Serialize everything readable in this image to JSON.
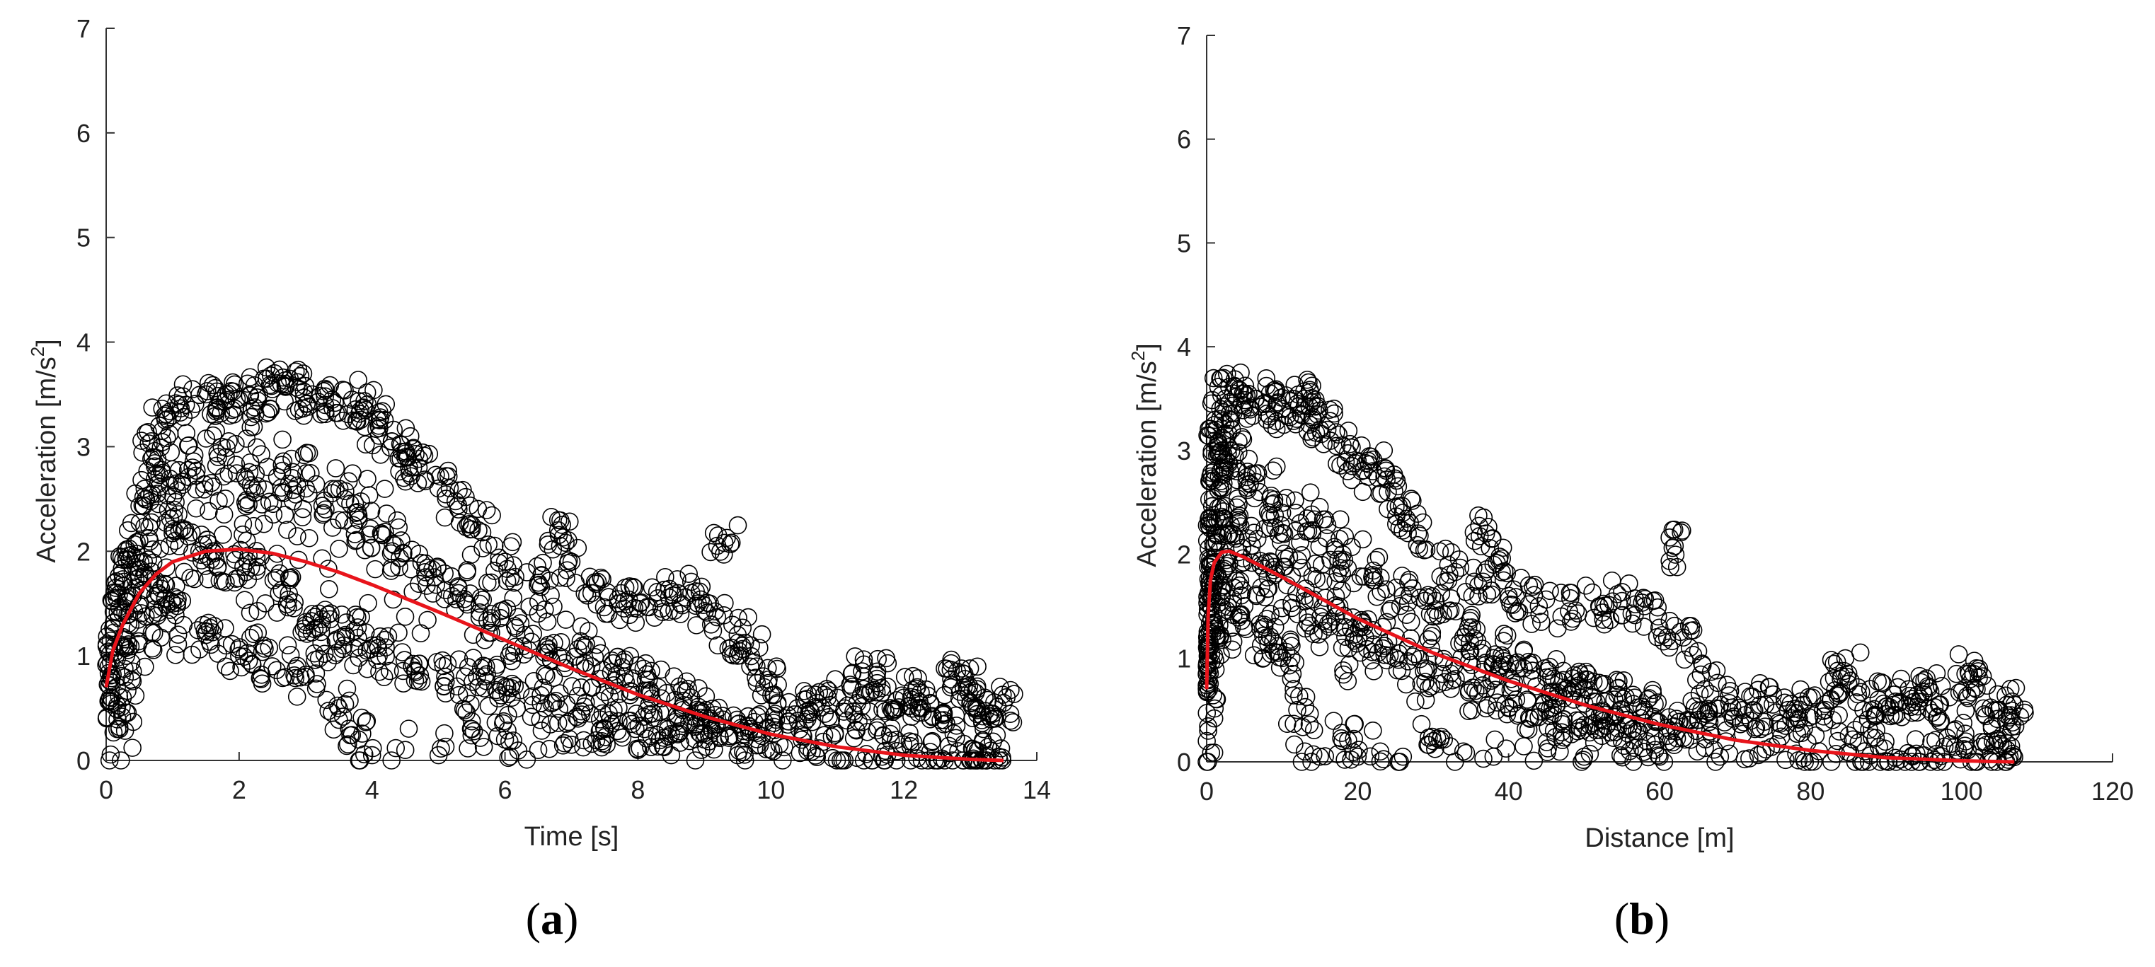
{
  "chart_data": [
    {
      "type": "scatter",
      "panel_label": "a",
      "xlabel": "Time [s]",
      "ylabel": "Acceleration [m/s",
      "ylabel_sup": "2",
      "ylabel_close": "]",
      "xlim": [
        0,
        14
      ],
      "ylim": [
        0,
        7
      ],
      "xticks": [
        "0",
        "2",
        "4",
        "6",
        "8",
        "10",
        "12",
        "14"
      ],
      "yticks": [
        "0",
        "1",
        "2",
        "3",
        "4",
        "5",
        "6",
        "7"
      ],
      "marker_color": "#000000",
      "fit_color": "#e8141b",
      "scatter_points": [
        [
          0.05,
          0.0
        ],
        [
          0.2,
          0.3
        ],
        [
          0.25,
          0.6
        ],
        [
          0.3,
          1.0
        ],
        [
          0.35,
          1.4
        ],
        [
          0.4,
          1.8
        ],
        [
          0.5,
          2.1
        ],
        [
          0.6,
          2.5
        ],
        [
          0.7,
          2.9
        ],
        [
          0.8,
          3.2
        ],
        [
          1.0,
          3.3
        ],
        [
          1.2,
          3.4
        ],
        [
          1.5,
          3.5
        ],
        [
          1.8,
          3.5
        ],
        [
          2.0,
          3.45
        ],
        [
          2.3,
          3.5
        ],
        [
          2.5,
          3.55
        ],
        [
          2.7,
          3.6
        ],
        [
          2.9,
          3.55
        ],
        [
          3.1,
          3.5
        ],
        [
          3.4,
          3.45
        ],
        [
          3.7,
          3.45
        ],
        [
          3.9,
          3.35
        ],
        [
          4.1,
          3.2
        ],
        [
          4.3,
          3.05
        ],
        [
          4.5,
          2.9
        ],
        [
          4.7,
          2.8
        ],
        [
          5.0,
          2.6
        ],
        [
          5.3,
          2.4
        ],
        [
          5.6,
          2.2
        ],
        [
          6.0,
          1.9
        ],
        [
          6.5,
          1.7
        ],
        [
          6.8,
          2.2
        ],
        [
          7.0,
          1.9
        ],
        [
          7.3,
          1.6
        ],
        [
          7.7,
          1.5
        ],
        [
          8.0,
          1.45
        ],
        [
          8.3,
          1.55
        ],
        [
          8.6,
          1.6
        ],
        [
          8.9,
          1.5
        ],
        [
          9.1,
          1.3
        ],
        [
          9.3,
          2.08
        ],
        [
          9.5,
          1.2
        ],
        [
          9.7,
          1.1
        ],
        [
          9.9,
          0.7
        ],
        [
          10.1,
          0.55
        ],
        [
          10.4,
          0.5
        ],
        [
          10.7,
          0.55
        ],
        [
          11.0,
          0.6
        ],
        [
          11.3,
          0.55
        ],
        [
          11.4,
          0.8
        ],
        [
          11.6,
          0.85
        ],
        [
          11.8,
          0.5
        ],
        [
          12.0,
          0.6
        ],
        [
          12.2,
          0.7
        ],
        [
          12.4,
          0.55
        ],
        [
          12.6,
          0.45
        ],
        [
          12.8,
          0.85
        ],
        [
          12.9,
          0.7
        ],
        [
          13.0,
          0.55
        ],
        [
          13.2,
          0.3
        ],
        [
          13.3,
          0.45
        ],
        [
          13.5,
          0.55
        ],
        [
          1.0,
          1.5
        ],
        [
          1.5,
          1.2
        ],
        [
          2.0,
          1.0
        ],
        [
          2.5,
          0.9
        ],
        [
          3.0,
          0.8
        ],
        [
          3.5,
          0.5
        ],
        [
          3.8,
          0.2
        ],
        [
          4.0,
          0.05
        ],
        [
          4.5,
          0.1
        ],
        [
          5.0,
          0.05
        ],
        [
          5.5,
          0.3
        ],
        [
          6.0,
          0.2
        ],
        [
          6.5,
          0.1
        ],
        [
          7.0,
          0.15
        ],
        [
          7.5,
          0.3
        ],
        [
          8.0,
          0.1
        ],
        [
          8.5,
          0.05
        ],
        [
          9.0,
          0.2
        ],
        [
          9.5,
          0.05
        ],
        [
          10.0,
          0.1
        ],
        [
          1.3,
          2.8
        ],
        [
          1.8,
          2.9
        ],
        [
          2.2,
          2.6
        ],
        [
          2.8,
          2.7
        ],
        [
          3.3,
          2.4
        ],
        [
          3.8,
          2.3
        ],
        [
          4.3,
          2.0
        ],
        [
          4.8,
          1.8
        ],
        [
          5.3,
          1.6
        ],
        [
          5.8,
          1.4
        ],
        [
          6.3,
          1.2
        ],
        [
          6.8,
          1.0
        ],
        [
          7.3,
          0.9
        ],
        [
          7.8,
          0.8
        ],
        [
          8.3,
          0.7
        ],
        [
          8.8,
          0.6
        ],
        [
          1.1,
          2.2
        ],
        [
          1.6,
          2.0
        ],
        [
          2.1,
          1.8
        ],
        [
          2.6,
          1.6
        ],
        [
          3.1,
          1.4
        ],
        [
          3.6,
          1.2
        ],
        [
          4.1,
          1.0
        ],
        [
          4.6,
          0.9
        ],
        [
          5.1,
          0.8
        ],
        [
          5.6,
          0.7
        ],
        [
          6.1,
          0.6
        ],
        [
          6.6,
          0.5
        ],
        [
          7.1,
          0.4
        ],
        [
          7.6,
          0.35
        ],
        [
          8.1,
          0.3
        ],
        [
          8.6,
          0.25
        ],
        [
          9.1,
          0.3
        ],
        [
          9.6,
          0.25
        ]
      ],
      "fit_curve": [
        [
          0.0,
          0.7
        ],
        [
          0.1,
          1.05
        ],
        [
          0.25,
          1.3
        ],
        [
          0.5,
          1.6
        ],
        [
          0.75,
          1.78
        ],
        [
          1.0,
          1.9
        ],
        [
          1.5,
          2.0
        ],
        [
          2.0,
          2.02
        ],
        [
          2.5,
          1.98
        ],
        [
          3.0,
          1.9
        ],
        [
          3.5,
          1.8
        ],
        [
          4.0,
          1.68
        ],
        [
          5.0,
          1.42
        ],
        [
          6.0,
          1.15
        ],
        [
          7.0,
          0.88
        ],
        [
          8.0,
          0.63
        ],
        [
          9.0,
          0.42
        ],
        [
          10.0,
          0.25
        ],
        [
          11.0,
          0.13
        ],
        [
          12.0,
          0.05
        ],
        [
          13.0,
          0.01
        ],
        [
          13.5,
          0.0
        ]
      ]
    },
    {
      "type": "scatter",
      "panel_label": "b",
      "xlabel": "Distance [m]",
      "ylabel": "Acceleration [m/s",
      "ylabel_sup": "2",
      "ylabel_close": "]",
      "xlim": [
        0,
        120
      ],
      "ylim": [
        0,
        7
      ],
      "xticks": [
        "0",
        "20",
        "40",
        "60",
        "80",
        "100",
        "120"
      ],
      "yticks": [
        "0",
        "1",
        "2",
        "3",
        "4",
        "5",
        "6",
        "7"
      ],
      "marker_color": "#000000",
      "fit_color": "#e8141b",
      "scatter_points": [
        [
          0.0,
          0.0
        ],
        [
          0.2,
          0.3
        ],
        [
          0.3,
          0.7
        ],
        [
          0.4,
          1.1
        ],
        [
          0.5,
          1.5
        ],
        [
          0.6,
          1.9
        ],
        [
          0.8,
          2.3
        ],
        [
          1.0,
          2.8
        ],
        [
          1.3,
          3.2
        ],
        [
          1.8,
          3.4
        ],
        [
          2.5,
          3.5
        ],
        [
          3.5,
          3.55
        ],
        [
          5.0,
          3.55
        ],
        [
          6.5,
          3.5
        ],
        [
          8.0,
          3.45
        ],
        [
          10.0,
          3.4
        ],
        [
          12.0,
          3.45
        ],
        [
          13.0,
          3.5
        ],
        [
          14.0,
          3.3
        ],
        [
          16.0,
          3.2
        ],
        [
          18.0,
          3.05
        ],
        [
          20.0,
          2.9
        ],
        [
          22.0,
          2.8
        ],
        [
          24.0,
          2.6
        ],
        [
          26.0,
          2.4
        ],
        [
          28.0,
          2.2
        ],
        [
          32.0,
          1.9
        ],
        [
          36.0,
          1.7
        ],
        [
          37.0,
          2.2
        ],
        [
          38.0,
          1.9
        ],
        [
          40.0,
          1.6
        ],
        [
          44.0,
          1.5
        ],
        [
          48.0,
          1.45
        ],
        [
          52.0,
          1.5
        ],
        [
          55.0,
          1.55
        ],
        [
          58.0,
          1.5
        ],
        [
          61.0,
          1.2
        ],
        [
          62.0,
          2.08
        ],
        [
          64.0,
          1.1
        ],
        [
          66.0,
          0.7
        ],
        [
          68.0,
          0.55
        ],
        [
          71.0,
          0.5
        ],
        [
          74.0,
          0.55
        ],
        [
          77.0,
          0.5
        ],
        [
          79.0,
          0.55
        ],
        [
          82.0,
          0.5
        ],
        [
          84.0,
          0.8
        ],
        [
          85.0,
          0.85
        ],
        [
          87.0,
          0.5
        ],
        [
          89.0,
          0.6
        ],
        [
          91.0,
          0.55
        ],
        [
          93.0,
          0.7
        ],
        [
          95.0,
          0.65
        ],
        [
          97.0,
          0.55
        ],
        [
          99.0,
          0.3
        ],
        [
          101.0,
          0.85
        ],
        [
          102.0,
          0.7
        ],
        [
          104.0,
          0.35
        ],
        [
          106.0,
          0.45
        ],
        [
          107.0,
          0.55
        ],
        [
          5.0,
          1.5
        ],
        [
          8.0,
          1.2
        ],
        [
          10.0,
          1.0
        ],
        [
          12.0,
          0.5
        ],
        [
          13.0,
          0.1
        ],
        [
          15.0,
          0.05
        ],
        [
          18.0,
          0.2
        ],
        [
          20.0,
          0.05
        ],
        [
          23.0,
          0.1
        ],
        [
          26.0,
          0.05
        ],
        [
          30.0,
          0.2
        ],
        [
          34.0,
          0.1
        ],
        [
          38.0,
          0.05
        ],
        [
          42.0,
          0.15
        ],
        [
          46.0,
          0.3
        ],
        [
          50.0,
          0.05
        ],
        [
          55.0,
          0.2
        ],
        [
          60.0,
          0.05
        ],
        [
          65.0,
          0.1
        ],
        [
          68.0,
          0.05
        ],
        [
          4.0,
          2.8
        ],
        [
          7.0,
          2.6
        ],
        [
          10.0,
          2.4
        ],
        [
          14.0,
          2.2
        ],
        [
          18.0,
          2.0
        ],
        [
          22.0,
          1.8
        ],
        [
          26.0,
          1.6
        ],
        [
          30.0,
          1.4
        ],
        [
          34.0,
          1.2
        ],
        [
          38.0,
          1.0
        ],
        [
          42.0,
          0.9
        ],
        [
          46.0,
          0.8
        ],
        [
          50.0,
          0.7
        ],
        [
          54.0,
          0.6
        ],
        [
          58.0,
          0.5
        ],
        [
          3.0,
          2.2
        ],
        [
          6.0,
          2.0
        ],
        [
          9.0,
          1.8
        ],
        [
          13.0,
          1.6
        ],
        [
          17.0,
          1.4
        ],
        [
          21.0,
          1.2
        ],
        [
          25.0,
          1.0
        ],
        [
          29.0,
          0.9
        ],
        [
          33.0,
          0.8
        ],
        [
          37.0,
          0.7
        ],
        [
          41.0,
          0.6
        ],
        [
          45.0,
          0.5
        ],
        [
          49.0,
          0.4
        ],
        [
          53.0,
          0.35
        ],
        [
          57.0,
          0.3
        ],
        [
          61.0,
          0.25
        ]
      ],
      "fit_curve": [
        [
          0.0,
          0.7
        ],
        [
          0.2,
          1.4
        ],
        [
          0.5,
          1.75
        ],
        [
          1.0,
          1.92
        ],
        [
          2.0,
          2.02
        ],
        [
          3.0,
          2.03
        ],
        [
          5.0,
          1.97
        ],
        [
          10.0,
          1.78
        ],
        [
          15.0,
          1.58
        ],
        [
          20.0,
          1.38
        ],
        [
          30.0,
          1.05
        ],
        [
          40.0,
          0.78
        ],
        [
          50.0,
          0.55
        ],
        [
          60.0,
          0.36
        ],
        [
          70.0,
          0.21
        ],
        [
          80.0,
          0.11
        ],
        [
          90.0,
          0.04
        ],
        [
          100.0,
          0.01
        ],
        [
          107.0,
          0.0
        ]
      ]
    }
  ]
}
